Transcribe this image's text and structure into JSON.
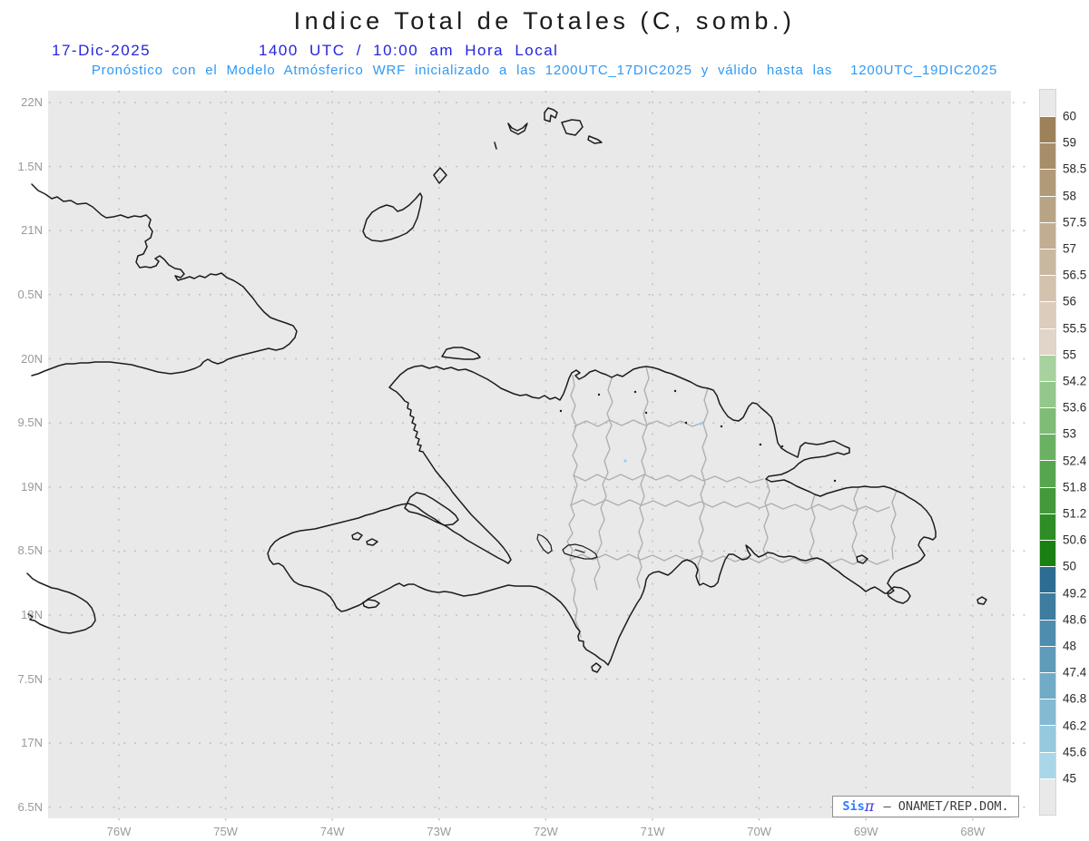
{
  "title": "Indice Total de Totales (C, somb.)",
  "header": {
    "date": "17-Dic-2025",
    "time": "1400 UTC / 10:00 am Hora Local",
    "subtitle": "Pronóstico con el Modelo Atmósferico WRF inicializado a las 1200UTC_17DIC2025 y válido hasta las  1200UTC_19DIC2025"
  },
  "map": {
    "lat_labels": [
      "22N",
      "1.5N",
      "21N",
      "0.5N",
      "20N",
      "9.5N",
      "19N",
      "8.5N",
      "18N",
      "7.5N",
      "17N",
      "6.5N"
    ],
    "lon_labels": [
      "76W",
      "75W",
      "74W",
      "73W",
      "72W",
      "71W",
      "70W",
      "69W",
      "68W"
    ],
    "domain_fill": "#e9e9e9",
    "grid_dot_color": "#bdbdbd",
    "coastline_color": "#1c1c1c",
    "admin_boundary_color": "#b0b0b0"
  },
  "colorbar": {
    "tick_labels": [
      "60",
      "59",
      "58.5",
      "58",
      "57.5",
      "57",
      "56.5",
      "56",
      "55.5",
      "55",
      "54.2",
      "53.6",
      "53",
      "52.4",
      "51.8",
      "51.2",
      "50.6",
      "50",
      "49.2",
      "48.6",
      "48",
      "47.4",
      "46.8",
      "46.2",
      "45.6",
      "45"
    ],
    "segment_colors": [
      "#e9e9e9",
      "#9c8159",
      "#a78e6a",
      "#b09a78",
      "#b8a485",
      "#c1ae92",
      "#c9b8a0",
      "#d2c2ae",
      "#dbccbc",
      "#e0d5c8",
      "#a7d19f",
      "#93c78b",
      "#7fbc77",
      "#6bb163",
      "#57a54f",
      "#43993b",
      "#2f8d27",
      "#1b8013",
      "#2d6c93",
      "#3e7ca0",
      "#4f8cad",
      "#609bba",
      "#72abc6",
      "#84bad2",
      "#96c9de",
      "#a9d7e9",
      "#e9e9e9"
    ]
  },
  "attribution": {
    "brand": "Sis",
    "pi": "π",
    "text": "– ONAMET/REP.DOM."
  }
}
